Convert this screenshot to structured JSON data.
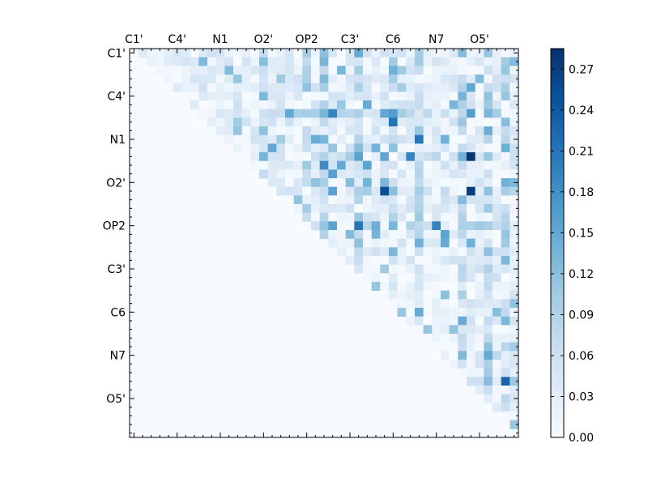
{
  "chart_data": {
    "type": "heatmap",
    "title": "",
    "xlabel": "",
    "ylabel": "",
    "size": 45,
    "x_tick_labels": [
      "C1'",
      "C4'",
      "N1",
      "O2'",
      "OP2",
      "C3'",
      "C6",
      "N7",
      "O5'"
    ],
    "y_tick_labels": [
      "C1'",
      "C4'",
      "N1",
      "O2'",
      "OP2",
      "C3'",
      "C6",
      "N7",
      "O5'"
    ],
    "x_tick_positions": [
      0,
      5,
      10,
      15,
      20,
      25,
      30,
      35,
      40
    ],
    "y_tick_positions": [
      0,
      5,
      10,
      15,
      20,
      25,
      30,
      35,
      40
    ],
    "colormap": "Blues",
    "colors": {
      "low": "#f7fbff",
      "mid": "#6baed6",
      "high": "#08306b"
    },
    "colorbar": {
      "min": 0.0,
      "max": 0.285,
      "tick_values": [
        0.0,
        0.03,
        0.06,
        0.09,
        0.12,
        0.15,
        0.18,
        0.21,
        0.24,
        0.27
      ],
      "tick_labels": [
        "0.00",
        "0.03",
        "0.06",
        "0.09",
        "0.12",
        "0.15",
        "0.18",
        "0.21",
        "0.24",
        "0.27"
      ]
    },
    "upper_triangle_only": true
  }
}
